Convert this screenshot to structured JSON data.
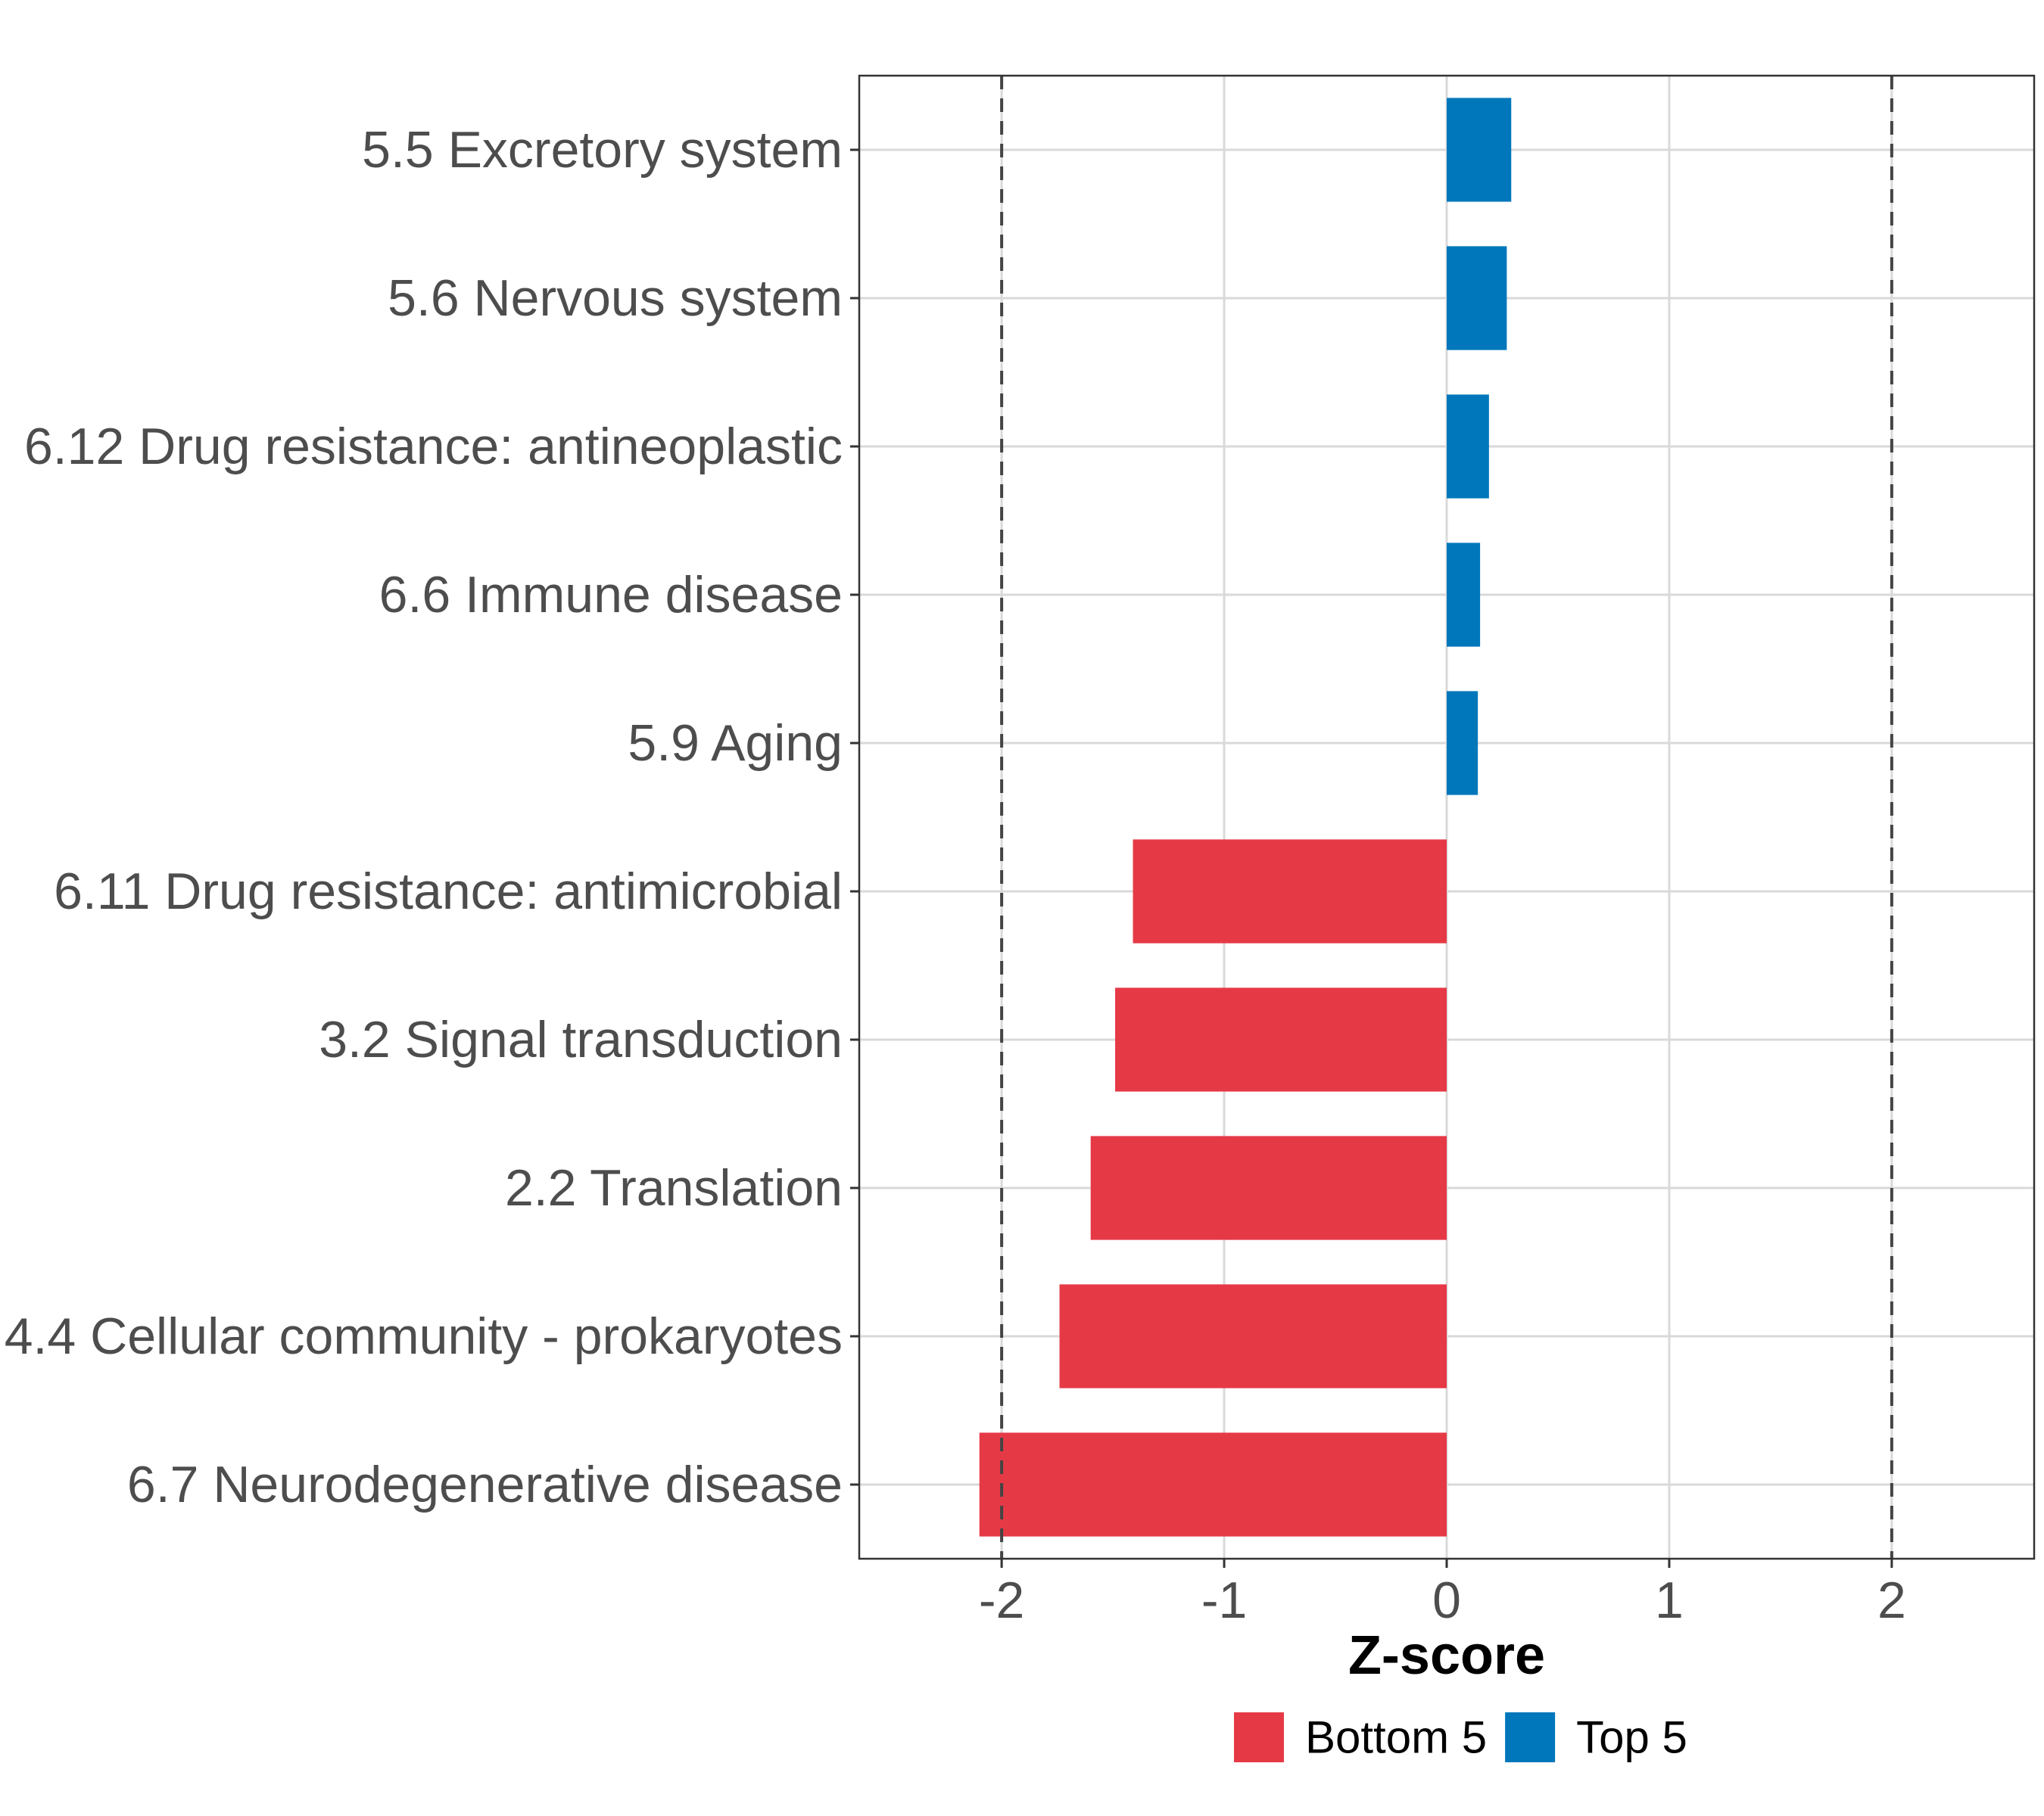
{
  "chart_data": {
    "type": "bar",
    "orientation": "horizontal",
    "categories": [
      "5.5 Excretory system",
      "5.6 Nervous system",
      "6.12 Drug resistance: antineoplastic",
      "6.6 Immune disease",
      "5.9 Aging",
      "6.11 Drug resistance: antimicrobial",
      "3.2 Signal transduction",
      "2.2 Translation",
      "4.4 Cellular community - prokaryotes",
      "6.7 Neurodegenerative disease"
    ],
    "values": [
      0.29,
      0.27,
      0.19,
      0.15,
      0.14,
      -1.41,
      -1.49,
      -1.6,
      -1.74,
      -2.1
    ],
    "groups": [
      "Top 5",
      "Top 5",
      "Top 5",
      "Top 5",
      "Top 5",
      "Bottom 5",
      "Bottom 5",
      "Bottom 5",
      "Bottom 5",
      "Bottom 5"
    ],
    "xlabel": "Z-score",
    "ylabel": "",
    "xlim": [
      -2.64,
      2.64
    ],
    "xticks": [
      -2,
      -1,
      0,
      1,
      2
    ],
    "xtick_labels": [
      "-2",
      "-1",
      "0",
      "1",
      "2"
    ],
    "reference_lines": [
      -2,
      2
    ],
    "grid": true,
    "legend": {
      "position": "bottom",
      "entries": [
        {
          "label": "Bottom 5",
          "color": "#E63946"
        },
        {
          "label": "Top 5",
          "color": "#0077BB"
        }
      ]
    },
    "colors": {
      "Top 5": "#0077BB",
      "Bottom 5": "#E63946"
    }
  }
}
